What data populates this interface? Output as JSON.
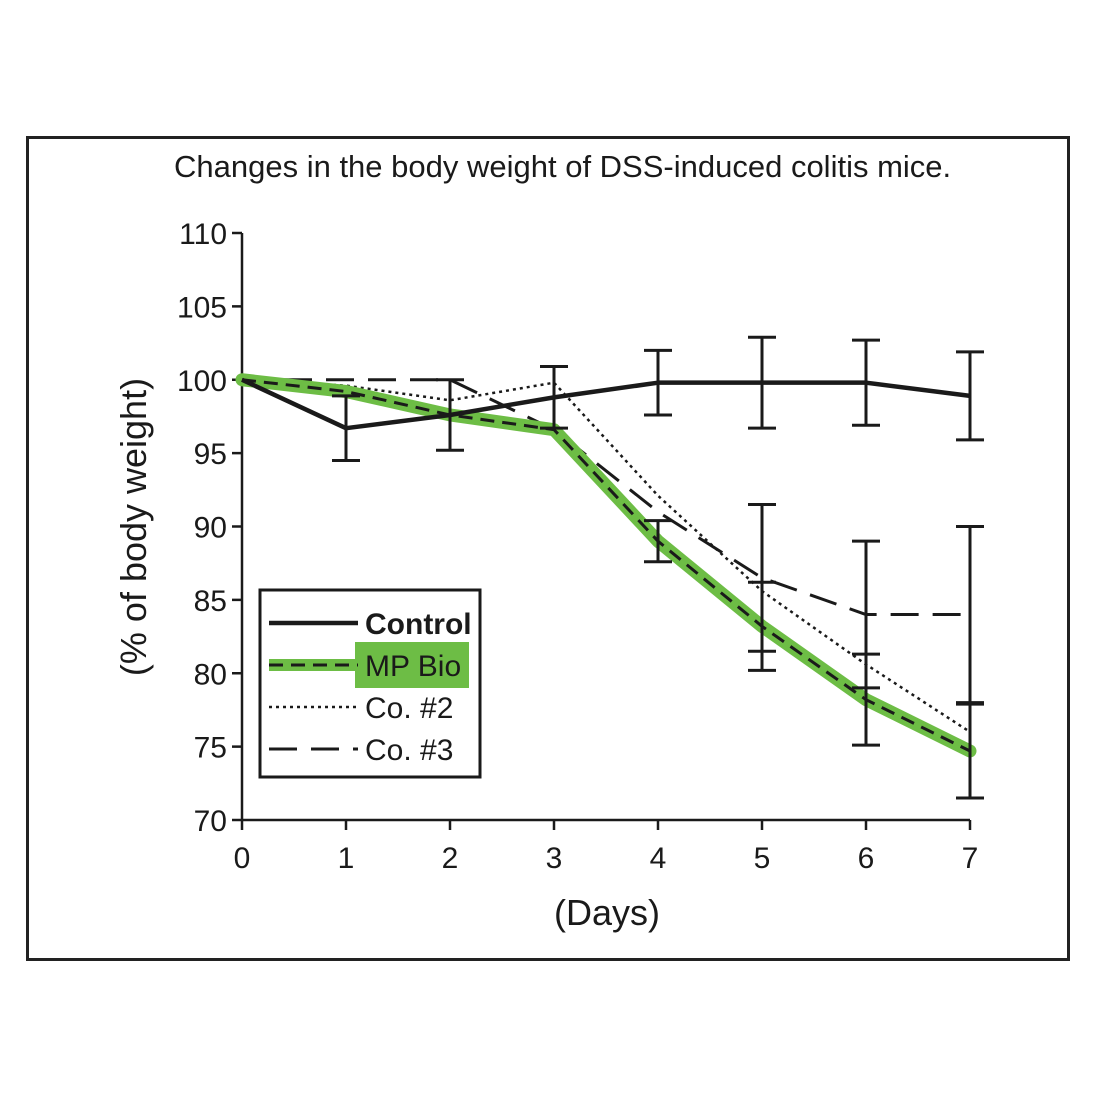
{
  "chart_data": {
    "type": "line",
    "title": "Changes in the body weight of DSS-induced colitis mice.",
    "xlabel": "(Days)",
    "ylabel": "(% of body weight)",
    "x": [
      0,
      1,
      2,
      3,
      4,
      5,
      6,
      7
    ],
    "xlim": [
      0,
      7
    ],
    "ylim": [
      70,
      110
    ],
    "xticks": [
      0,
      1,
      2,
      3,
      4,
      5,
      6,
      7
    ],
    "yticks": [
      70,
      75,
      80,
      85,
      90,
      95,
      100,
      105,
      110
    ],
    "legend_position": "bottom-left",
    "series": [
      {
        "name": "Control",
        "style": "solid-thick",
        "color": "#1a1a1a",
        "values": [
          100,
          96.7,
          97.6,
          98.8,
          99.8,
          99.8,
          99.8,
          98.9
        ],
        "error": [
          0,
          2.2,
          2.4,
          2.1,
          2.2,
          3.1,
          2.9,
          3.0
        ]
      },
      {
        "name": "MP Bio",
        "style": "dashed-on-green",
        "color": "#1a1a1a",
        "highlight": "#6dbd45",
        "values": [
          100,
          99.2,
          97.6,
          96.6,
          89.0,
          83.2,
          78.2,
          74.7
        ],
        "error": [
          0,
          0,
          0,
          0,
          1.4,
          3.0,
          3.1,
          3.2
        ]
      },
      {
        "name": "Co. #2",
        "style": "dotted",
        "color": "#1a1a1a",
        "values": [
          100,
          99.6,
          98.6,
          99.8,
          92.1,
          85.6,
          80.6,
          76.0
        ],
        "error": [
          0,
          0,
          0,
          0,
          0,
          0,
          0,
          0
        ]
      },
      {
        "name": "Co. #3",
        "style": "long-dashed",
        "color": "#1a1a1a",
        "values": [
          100,
          100,
          100,
          96.6,
          91.0,
          86.5,
          84.0,
          84.0
        ],
        "error": [
          0,
          0,
          0,
          0,
          0,
          5.0,
          5.0,
          6.0
        ]
      }
    ]
  }
}
